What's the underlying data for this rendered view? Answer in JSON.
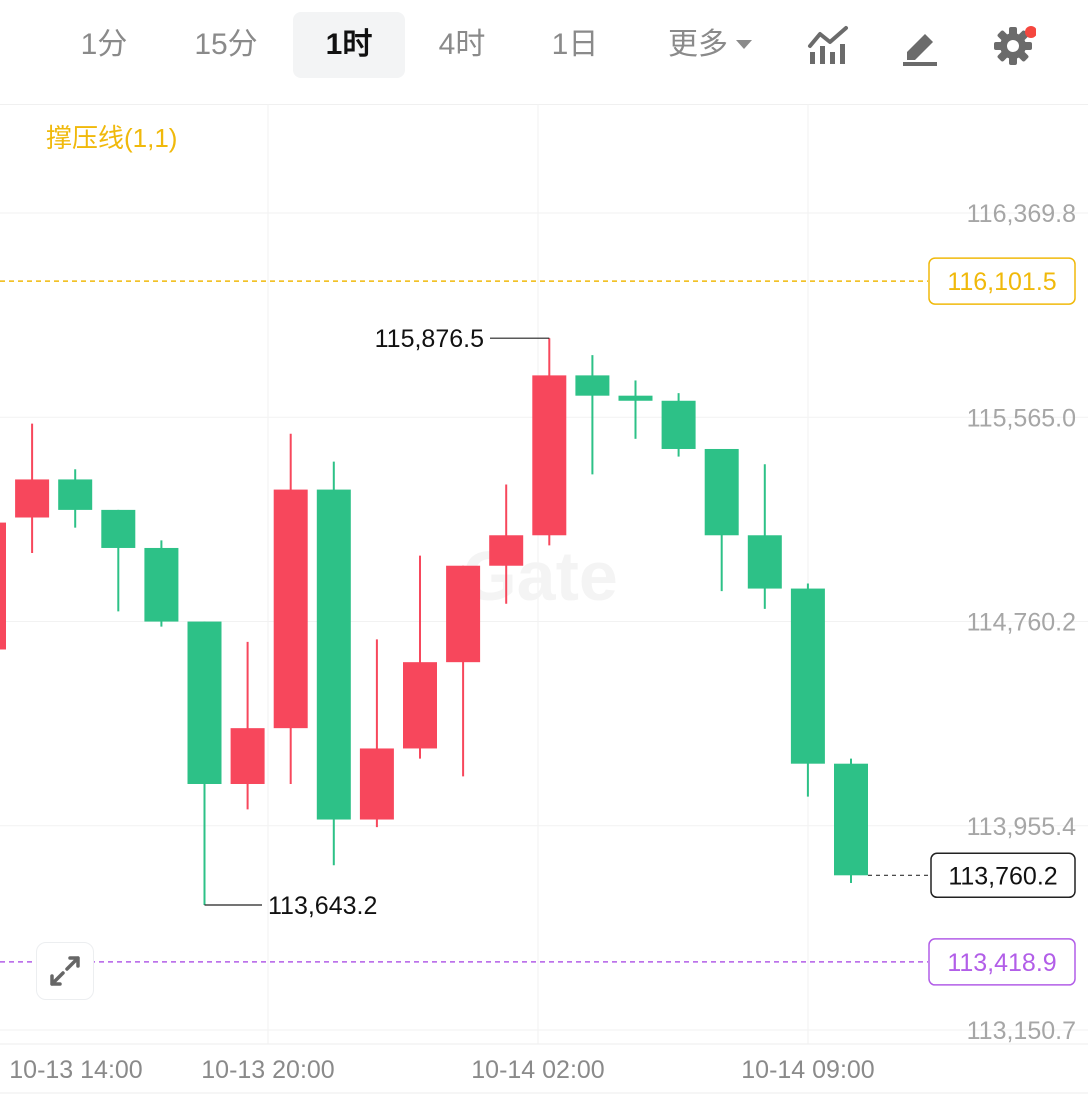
{
  "timeframes": [
    {
      "label": "1分",
      "active": false
    },
    {
      "label": "15分",
      "active": false
    },
    {
      "label": "1时",
      "active": true
    },
    {
      "label": "4时",
      "active": false
    },
    {
      "label": "1日",
      "active": false
    }
  ],
  "more_label": "更多",
  "tools": {
    "indicator_icon": "chart-indicator-icon",
    "draw_icon": "pen-draw-icon",
    "settings_icon": "gear-icon",
    "settings_badge_color": "#f5473f"
  },
  "indicator_label": "撑压线(1,1)",
  "watermark": "Gate",
  "colors": {
    "up": "#f7475c",
    "down": "#2dc187",
    "resistance": "#f0b90b",
    "support": "#b25ee8"
  },
  "chart_data": {
    "type": "candlestick",
    "y_ticks": [
      "116,369.8",
      "115,565.0",
      "114,760.2",
      "113,955.4",
      "113,150.7"
    ],
    "x_ticks": [
      "10-13 14:00",
      "10-13 20:00",
      "10-14 02:00",
      "10-14 09:00"
    ],
    "candles": [
      {
        "open": 114650,
        "close": 115150,
        "high": 115150,
        "low": 114650
      },
      {
        "open": 115170,
        "close": 115320,
        "high": 115540,
        "low": 115030
      },
      {
        "open": 115320,
        "close": 115200,
        "high": 115360,
        "low": 115130
      },
      {
        "open": 115200,
        "close": 115050,
        "high": 115200,
        "low": 114800
      },
      {
        "open": 115050,
        "close": 114760,
        "high": 115080,
        "low": 114740
      },
      {
        "open": 114760,
        "close": 114120,
        "high": 114760,
        "low": 113643.2
      },
      {
        "open": 114120,
        "close": 114340,
        "high": 114680,
        "low": 114020
      },
      {
        "open": 114340,
        "close": 115280,
        "high": 115500,
        "low": 114120
      },
      {
        "open": 115280,
        "close": 113980,
        "high": 115390,
        "low": 113800
      },
      {
        "open": 113980,
        "close": 114260,
        "high": 114690,
        "low": 113950
      },
      {
        "open": 114260,
        "close": 114600,
        "high": 115020,
        "low": 114220
      },
      {
        "open": 114600,
        "close": 114980,
        "high": 114980,
        "low": 114150
      },
      {
        "open": 114980,
        "close": 115100,
        "high": 115300,
        "low": 114830
      },
      {
        "open": 115100,
        "close": 115730,
        "high": 115876.5,
        "low": 115060
      },
      {
        "open": 115730,
        "close": 115650,
        "high": 115810,
        "low": 115340
      },
      {
        "open": 115650,
        "close": 115630,
        "high": 115710,
        "low": 115480
      },
      {
        "open": 115630,
        "close": 115440,
        "high": 115660,
        "low": 115410
      },
      {
        "open": 115440,
        "close": 115100,
        "high": 115440,
        "low": 114880
      },
      {
        "open": 115100,
        "close": 114890,
        "high": 115380,
        "low": 114810
      },
      {
        "open": 114890,
        "close": 114200,
        "high": 114910,
        "low": 114070
      },
      {
        "open": 114200,
        "close": 113760.2,
        "high": 114220,
        "low": 113730
      }
    ],
    "annotations": {
      "high_label": "115,876.5",
      "low_label": "113,643.2",
      "last_price": "113,760.2",
      "resistance": "116,101.5",
      "support": "113,418.9"
    }
  }
}
